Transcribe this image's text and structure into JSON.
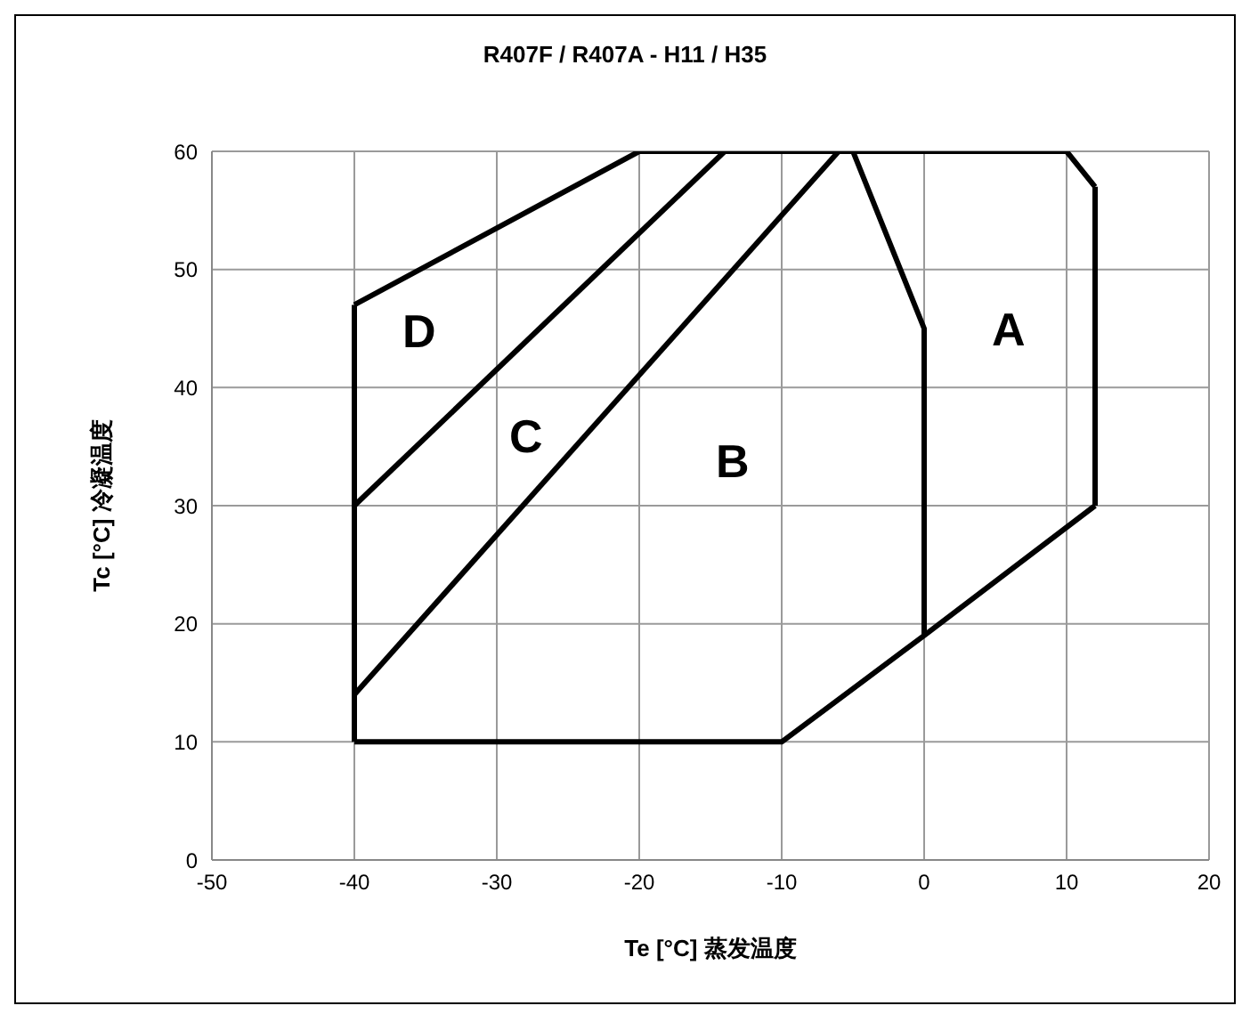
{
  "chart_data": {
    "type": "line",
    "title": "R407F / R407A - H11 / H35",
    "xlabel": "Te [°C]  蒸发温度",
    "ylabel": "Tc [°C]  冷凝温度",
    "series": [
      {
        "color": "#000000",
        "x": [
          -40,
          -20,
          10,
          12
        ],
        "values": [
          47,
          60,
          60,
          57
        ]
      },
      {
        "color": "#000000",
        "x": [
          -40,
          -10,
          0,
          12
        ],
        "values": [
          10,
          10,
          19,
          30
        ]
      },
      {
        "color": "#000000",
        "x": [
          -40,
          -40
        ],
        "values": [
          10,
          47
        ]
      },
      {
        "color": "#000000",
        "x": [
          12,
          12
        ],
        "values": [
          30,
          57
        ]
      },
      {
        "color": "#000000",
        "x": [
          -5,
          0,
          0
        ],
        "values": [
          60,
          45,
          19
        ]
      },
      {
        "color": "#000000",
        "x": [
          -40,
          -6
        ],
        "values": [
          14,
          60
        ]
      },
      {
        "color": "#000000",
        "x": [
          -40,
          -14
        ],
        "values": [
          30,
          60
        ]
      }
    ],
    "xlim": [
      -50,
      20
    ],
    "xticks": [
      -50,
      -40,
      -30,
      -20,
      -10,
      0,
      10,
      20
    ],
    "ylim": [
      0,
      60
    ],
    "yticks": [
      0,
      10,
      20,
      30,
      40,
      50,
      60
    ],
    "grid": true,
    "line_style": "solid",
    "annotations": [
      "A",
      "B",
      "C",
      "D"
    ]
  }
}
